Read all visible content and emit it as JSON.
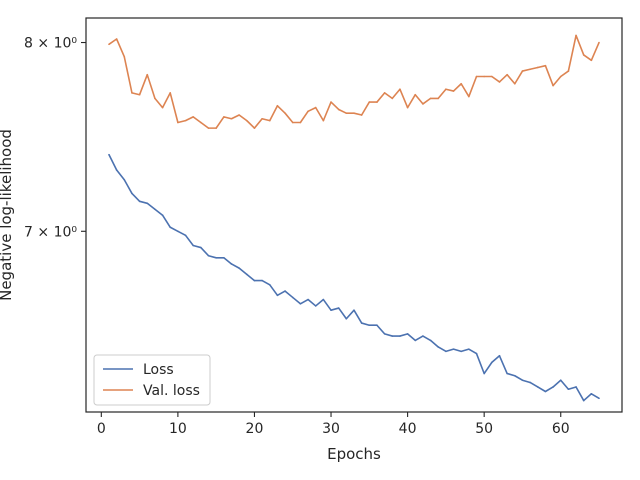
{
  "chart_data": {
    "type": "line",
    "xlabel": "Epochs",
    "ylabel": "Negative log-likelihood",
    "y_scale": "log",
    "xlim": [
      -2,
      68
    ],
    "ylim": [
      6.16,
      8.14
    ],
    "x_ticks": [
      0,
      10,
      20,
      30,
      40,
      50,
      60
    ],
    "x_tick_labels": [
      "0",
      "10",
      "20",
      "30",
      "40",
      "50",
      "60"
    ],
    "y_ticks": [
      8,
      7
    ],
    "y_tick_labels": [
      "8 × 10⁰",
      "7 × 10⁰"
    ],
    "grid": false,
    "legend_position": "lower left",
    "x": [
      1,
      2,
      3,
      4,
      5,
      6,
      7,
      8,
      9,
      10,
      11,
      12,
      13,
      14,
      15,
      16,
      17,
      18,
      19,
      20,
      21,
      22,
      23,
      24,
      25,
      26,
      27,
      28,
      29,
      30,
      31,
      32,
      33,
      34,
      35,
      36,
      37,
      38,
      39,
      40,
      41,
      42,
      43,
      44,
      45,
      46,
      47,
      48,
      49,
      50,
      51,
      52,
      53,
      54,
      55,
      56,
      57,
      58,
      59,
      60,
      61,
      62,
      63,
      64,
      65
    ],
    "series": [
      {
        "name": "Loss",
        "color": "#4c72b0",
        "values": [
          7.39,
          7.31,
          7.26,
          7.19,
          7.15,
          7.14,
          7.11,
          7.08,
          7.02,
          7.0,
          6.98,
          6.93,
          6.92,
          6.88,
          6.87,
          6.87,
          6.84,
          6.82,
          6.79,
          6.76,
          6.76,
          6.74,
          6.69,
          6.71,
          6.68,
          6.65,
          6.67,
          6.64,
          6.67,
          6.62,
          6.63,
          6.58,
          6.62,
          6.56,
          6.55,
          6.55,
          6.51,
          6.5,
          6.5,
          6.51,
          6.48,
          6.5,
          6.48,
          6.45,
          6.43,
          6.44,
          6.43,
          6.44,
          6.42,
          6.33,
          6.38,
          6.41,
          6.33,
          6.32,
          6.3,
          6.29,
          6.27,
          6.25,
          6.27,
          6.3,
          6.26,
          6.27,
          6.21,
          6.24,
          6.22
        ]
      },
      {
        "name": "Val. loss",
        "color": "#dd8452",
        "values": [
          7.99,
          8.02,
          7.92,
          7.72,
          7.71,
          7.82,
          7.69,
          7.64,
          7.72,
          7.56,
          7.57,
          7.59,
          7.56,
          7.53,
          7.53,
          7.59,
          7.58,
          7.6,
          7.57,
          7.53,
          7.58,
          7.57,
          7.65,
          7.61,
          7.56,
          7.56,
          7.62,
          7.64,
          7.57,
          7.67,
          7.63,
          7.61,
          7.61,
          7.6,
          7.67,
          7.67,
          7.72,
          7.69,
          7.74,
          7.64,
          7.71,
          7.66,
          7.69,
          7.69,
          7.74,
          7.73,
          7.77,
          7.7,
          7.81,
          7.81,
          7.81,
          7.78,
          7.82,
          7.77,
          7.84,
          7.85,
          7.86,
          7.87,
          7.76,
          7.81,
          7.84,
          8.04,
          7.93,
          7.9,
          8.0
        ]
      }
    ]
  }
}
